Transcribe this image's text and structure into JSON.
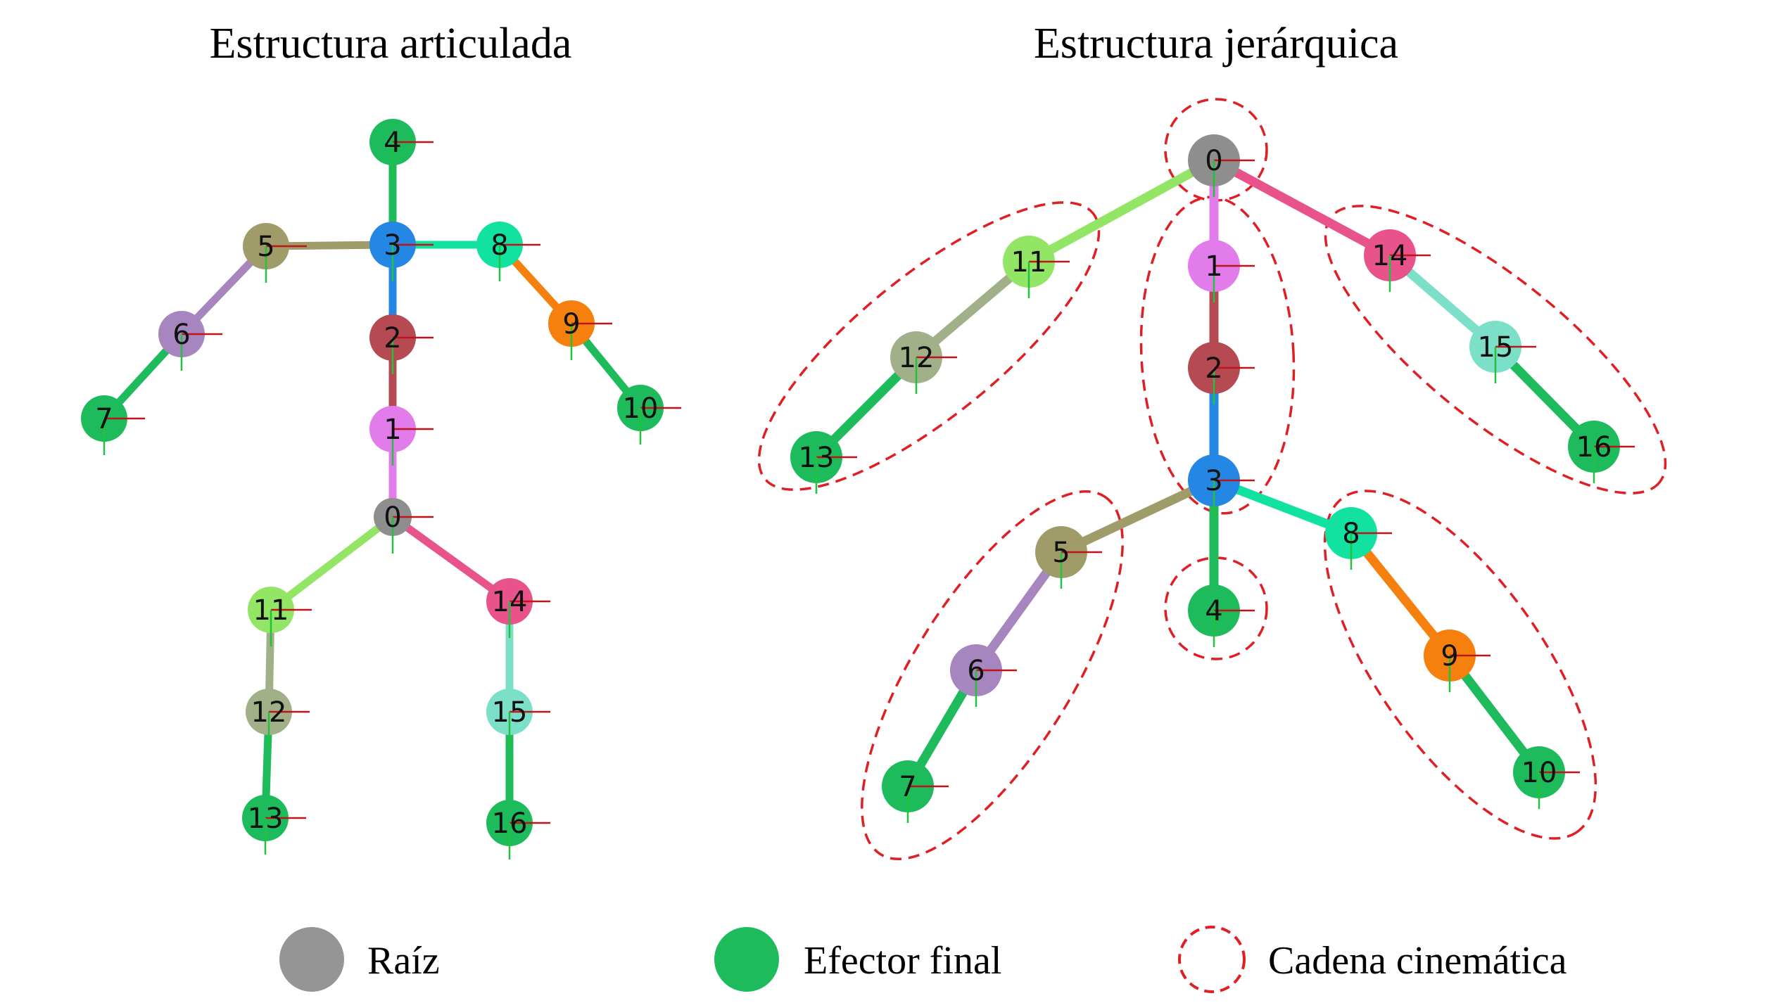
{
  "diagrams": {
    "articulated": {
      "title": "Estructura articulada",
      "nodes": [
        {
          "id": "0",
          "color": "#8e8e8e"
        },
        {
          "id": "1",
          "color": "#e37ceb"
        },
        {
          "id": "2",
          "color": "#b64a52"
        },
        {
          "id": "3",
          "color": "#2487e3"
        },
        {
          "id": "4",
          "color": "#1dbb5c"
        },
        {
          "id": "5",
          "color": "#9f9c69"
        },
        {
          "id": "6",
          "color": "#a785bf"
        },
        {
          "id": "7",
          "color": "#1dbb5c"
        },
        {
          "id": "8",
          "color": "#12e2a0"
        },
        {
          "id": "9",
          "color": "#f5800e"
        },
        {
          "id": "10",
          "color": "#1dbb5c"
        },
        {
          "id": "11",
          "color": "#93e566"
        },
        {
          "id": "12",
          "color": "#a2b08a"
        },
        {
          "id": "13",
          "color": "#1dbb5c"
        },
        {
          "id": "14",
          "color": "#e8538b"
        },
        {
          "id": "15",
          "color": "#7ce0c8"
        },
        {
          "id": "16",
          "color": "#1dbb5c"
        }
      ]
    },
    "hierarchical": {
      "title": "Estructura jerárquica",
      "nodes": [
        {
          "id": "0",
          "color": "#8e8e8e"
        },
        {
          "id": "1",
          "color": "#e37ceb"
        },
        {
          "id": "2",
          "color": "#b64a52"
        },
        {
          "id": "3",
          "color": "#2487e3"
        },
        {
          "id": "4",
          "color": "#1dbb5c"
        },
        {
          "id": "5",
          "color": "#9f9c69"
        },
        {
          "id": "6",
          "color": "#a785bf"
        },
        {
          "id": "7",
          "color": "#1dbb5c"
        },
        {
          "id": "8",
          "color": "#12e2a0"
        },
        {
          "id": "9",
          "color": "#f5800e"
        },
        {
          "id": "10",
          "color": "#1dbb5c"
        },
        {
          "id": "11",
          "color": "#93e566"
        },
        {
          "id": "12",
          "color": "#a2b08a"
        },
        {
          "id": "13",
          "color": "#1dbb5c"
        },
        {
          "id": "14",
          "color": "#e8538b"
        },
        {
          "id": "15",
          "color": "#7ce0c8"
        },
        {
          "id": "16",
          "color": "#1dbb5c"
        }
      ]
    }
  },
  "legend": {
    "root": {
      "label": "Raíz",
      "color": "#959595"
    },
    "end_effector": {
      "label": "Efector final",
      "color": "#1dbb5c"
    },
    "chain": {
      "label": "Cadena cinemática",
      "color": "#e01f24"
    }
  }
}
